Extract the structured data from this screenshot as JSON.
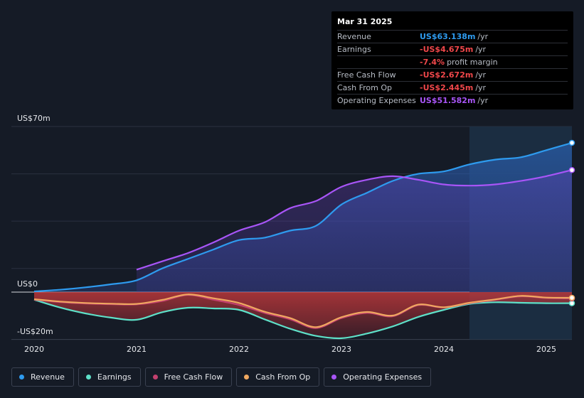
{
  "tooltip": {
    "date": "Mar 31 2025",
    "rows": [
      {
        "name": "Revenue",
        "value": "US$63.138m",
        "unit": "/yr",
        "color": "#2e9bef"
      },
      {
        "name": "Earnings",
        "value": "-US$4.675m",
        "unit": "/yr",
        "color": "#f0474a"
      },
      {
        "name": "",
        "value": "-7.4%",
        "unit": "profit margin",
        "color": "#f0474a"
      },
      {
        "name": "Free Cash Flow",
        "value": "-US$2.672m",
        "unit": "/yr",
        "color": "#f0474a"
      },
      {
        "name": "Cash From Op",
        "value": "-US$2.445m",
        "unit": "/yr",
        "color": "#f0474a"
      },
      {
        "name": "Operating Expenses",
        "value": "US$51.582m",
        "unit": "/yr",
        "color": "#a855f7"
      }
    ]
  },
  "legend": [
    {
      "label": "Revenue",
      "color": "#2e9bef"
    },
    {
      "label": "Earnings",
      "color": "#5ee0c8"
    },
    {
      "label": "Free Cash Flow",
      "color": "#c2406e"
    },
    {
      "label": "Cash From Op",
      "color": "#f0a860"
    },
    {
      "label": "Operating Expenses",
      "color": "#a855f7"
    }
  ],
  "chart_data": {
    "type": "area",
    "y_top_label": "US$70m",
    "y_zero_label": "US$0",
    "y_bottom_label": "-US$20m",
    "ylim": [
      -20,
      70
    ],
    "xlim": [
      2020,
      2025.25
    ],
    "x_ticks": [
      "2020",
      "2021",
      "2022",
      "2023",
      "2024",
      "2025"
    ],
    "forecast_start": 2024.25,
    "series": [
      {
        "name": "Revenue",
        "color": "#2e9bef",
        "x": [
          2020,
          2020.25,
          2020.5,
          2020.75,
          2021,
          2021.25,
          2021.5,
          2021.75,
          2022,
          2022.25,
          2022.5,
          2022.75,
          2023,
          2023.25,
          2023.5,
          2023.75,
          2024,
          2024.25,
          2024.5,
          2024.75,
          2025,
          2025.25
        ],
        "values": [
          0.3,
          1,
          2,
          3.3,
          5,
          10,
          14,
          18,
          22,
          23,
          26,
          28,
          37,
          42,
          47,
          50,
          51,
          54,
          56,
          57,
          60,
          63.1
        ]
      },
      {
        "name": "Earnings",
        "color": "#5ee0c8",
        "x": [
          2020,
          2020.25,
          2020.5,
          2020.75,
          2021,
          2021.25,
          2021.5,
          2021.75,
          2022,
          2022.25,
          2022.5,
          2022.75,
          2023,
          2023.25,
          2023.5,
          2023.75,
          2024,
          2024.25,
          2024.5,
          2024.75,
          2025,
          2025.25
        ],
        "values": [
          -3.2,
          -6.5,
          -9,
          -10.8,
          -11.7,
          -8.5,
          -6.6,
          -6.9,
          -7.5,
          -11.5,
          -15.5,
          -18.5,
          -19.5,
          -17.5,
          -14.5,
          -10.5,
          -7.5,
          -5,
          -4.3,
          -4.5,
          -4.7,
          -4.7
        ]
      },
      {
        "name": "Free Cash Flow",
        "color": "#c2406e",
        "x": [
          2020,
          2020.25,
          2020.5,
          2020.75,
          2021,
          2021.25,
          2021.5,
          2021.75,
          2022,
          2022.25,
          2022.5,
          2022.75,
          2023,
          2023.25,
          2023.5,
          2023.75,
          2024,
          2024.25,
          2024.5,
          2024.75,
          2025,
          2025.25
        ],
        "values": [
          -3.2,
          -4.2,
          -4.8,
          -5.1,
          -5.2,
          -3.8,
          -1.2,
          -3.2,
          -5.4,
          -8.8,
          -11.5,
          -15.2,
          -11,
          -8.8,
          -10.2,
          -5.5,
          -6.5,
          -4.7,
          -3.3,
          -1.8,
          -2.5,
          -2.7
        ]
      },
      {
        "name": "Cash From Op",
        "color": "#f0a860",
        "x": [
          2020,
          2020.25,
          2020.5,
          2020.75,
          2021,
          2021.25,
          2021.5,
          2021.75,
          2022,
          2022.25,
          2022.5,
          2022.75,
          2023,
          2023.25,
          2023.5,
          2023.75,
          2024,
          2024.25,
          2024.5,
          2024.75,
          2025,
          2025.25
        ],
        "values": [
          -3,
          -4,
          -4.6,
          -4.9,
          -5,
          -3.3,
          -1,
          -2.6,
          -4.6,
          -8.3,
          -11,
          -14.8,
          -10.6,
          -8.4,
          -9.9,
          -5.3,
          -6.4,
          -4.5,
          -3.1,
          -1.6,
          -2.3,
          -2.4
        ]
      },
      {
        "name": "Operating Expenses",
        "color": "#a855f7",
        "x": [
          2021,
          2021.25,
          2021.5,
          2021.75,
          2022,
          2022.25,
          2022.5,
          2022.75,
          2023,
          2023.25,
          2023.5,
          2023.75,
          2024,
          2024.25,
          2024.5,
          2024.75,
          2025,
          2025.25
        ],
        "values": [
          9.5,
          13,
          16.5,
          21,
          26,
          29.5,
          35.5,
          38.5,
          44.5,
          47.5,
          49,
          47.5,
          45.5,
          45,
          45.5,
          47,
          49,
          51.6
        ]
      }
    ]
  }
}
